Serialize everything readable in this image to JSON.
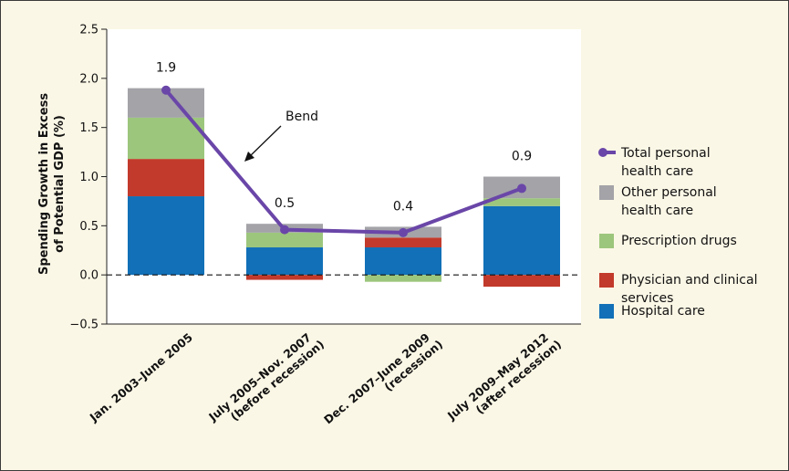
{
  "chart_data": {
    "type": "bar",
    "stacked": true,
    "ylabel_lines": [
      "Spending Growth in Excess",
      "of Potential GDP (%)"
    ],
    "ylim": [
      -0.5,
      2.5
    ],
    "yticks": [
      "2.5",
      "2.0",
      "1.5",
      "1.0",
      "0.5",
      "0.0",
      "−0.5"
    ],
    "ytick_values": [
      2.5,
      2.0,
      1.5,
      1.0,
      0.5,
      0.0,
      -0.5
    ],
    "categories": [
      [
        "Jan. 2003–June 2005"
      ],
      [
        "July 2005–Nov. 2007",
        "(before recession)"
      ],
      [
        "Dec. 2007–June 2009",
        "(recession)"
      ],
      [
        "July 2009–May 2012",
        "(after recession)"
      ]
    ],
    "series": [
      {
        "name": "Hospital care",
        "color": "#1170b8",
        "values": [
          0.8,
          0.28,
          0.28,
          0.7
        ]
      },
      {
        "name": "Physician and clinical services",
        "color": "#c23a2b",
        "values": [
          0.38,
          -0.05,
          0.1,
          -0.12
        ]
      },
      {
        "name": "Prescription drugs",
        "color": "#9cc67c",
        "values": [
          0.42,
          0.15,
          -0.07,
          0.08
        ]
      },
      {
        "name": "Other personal health care",
        "color": "#a3a3a8",
        "values": [
          0.3,
          0.09,
          0.11,
          0.22
        ]
      }
    ],
    "line": {
      "name": "Total personal health care",
      "color": "#6a46a8",
      "values": [
        1.88,
        0.46,
        0.43,
        0.88
      ],
      "labels": [
        "1.9",
        "0.5",
        "0.4",
        "0.9"
      ]
    },
    "annotation": {
      "text": "Bend"
    },
    "legend": {
      "position": "right",
      "items": [
        {
          "lines": [
            "Total personal",
            "health care"
          ],
          "color": "#6a46a8",
          "kind": "line"
        },
        {
          "lines": [
            "Other personal",
            "health care"
          ],
          "color": "#a3a3a8",
          "kind": "box"
        },
        {
          "lines": [
            "Prescription drugs"
          ],
          "color": "#9cc67c",
          "kind": "box"
        },
        {
          "lines": [
            "Physician and clinical",
            "services"
          ],
          "color": "#c23a2b",
          "kind": "box"
        },
        {
          "lines": [
            "Hospital care"
          ],
          "color": "#1170b8",
          "kind": "box"
        }
      ]
    }
  }
}
